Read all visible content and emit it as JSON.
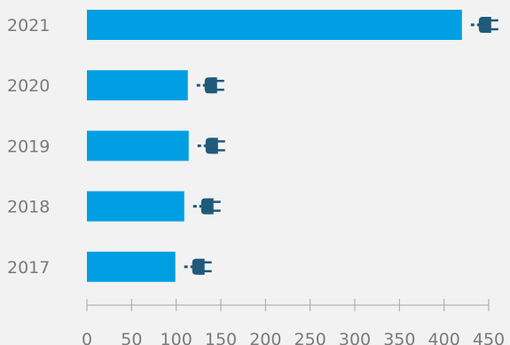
{
  "chart_data": {
    "type": "bar",
    "orientation": "horizontal",
    "categories": [
      "2021",
      "2020",
      "2019",
      "2018",
      "2017"
    ],
    "values": [
      420,
      113,
      114,
      109,
      99
    ],
    "xlim": [
      0,
      450
    ],
    "xticks": [
      "0",
      "50",
      "100",
      "150",
      "200",
      "250",
      "300",
      "350",
      "400",
      "450"
    ],
    "grid": false,
    "legend": "none",
    "bar_color": "#009fe3",
    "marker": "electric-plug-icon",
    "marker_color": "#1f5a7a",
    "axis_color": "#a6a6a6"
  }
}
